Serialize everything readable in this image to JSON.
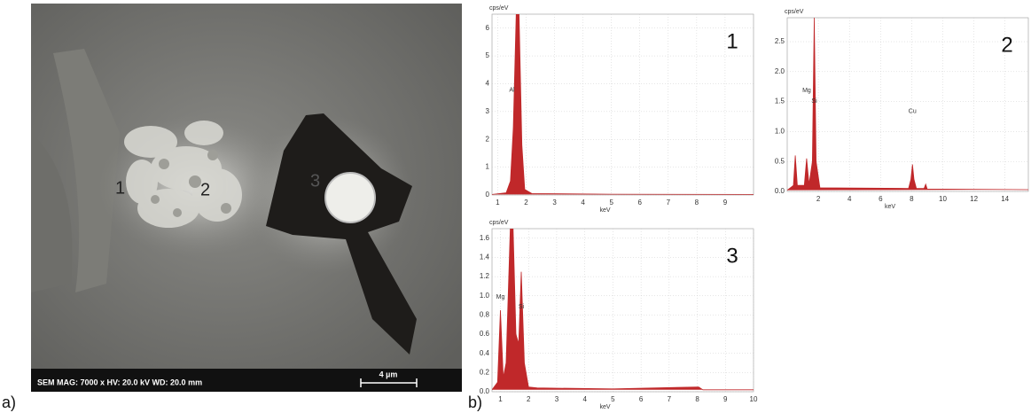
{
  "panel_labels": [
    "a)",
    "b)"
  ],
  "sem": {
    "region_labels": [
      "1",
      "2",
      "3"
    ],
    "info": "SEM  MAG: 7000 x  HV: 20.0 kV  WD: 20.0 mm",
    "scale": "4 µm"
  },
  "chart_data": [
    {
      "type": "area",
      "label": "1",
      "y_label": "cps/eV",
      "x_label": "keV",
      "color": "#c0282a",
      "grid": true,
      "xlim": [
        0.8,
        10
      ],
      "ylim": [
        0,
        6.5
      ],
      "xticks": [
        1,
        2,
        3,
        4,
        5,
        6,
        7,
        8,
        9
      ],
      "yticks": [
        0,
        1,
        2,
        3,
        4,
        5,
        6
      ],
      "x": [
        0.8,
        1.3,
        1.45,
        1.55,
        1.65,
        1.75,
        1.85,
        1.95,
        2.2,
        5,
        10
      ],
      "values": [
        0.02,
        0.08,
        0.5,
        2.4,
        6.5,
        6.5,
        1.8,
        0.2,
        0.05,
        0.03,
        0.02
      ],
      "annotations": [
        {
          "text": "Al",
          "x": 1.5
        }
      ]
    },
    {
      "type": "area",
      "label": "2",
      "y_label": "cps/eV",
      "x_label": "keV",
      "color": "#c0282a",
      "grid": true,
      "xlim": [
        0,
        15.5
      ],
      "ylim": [
        0,
        2.9
      ],
      "xticks": [
        2,
        4,
        6,
        8,
        10,
        12,
        14
      ],
      "yticks": [
        {
          "value": 0,
          "label": "0.0"
        },
        0.5,
        {
          "value": 1,
          "label": "1.0"
        },
        1.5,
        {
          "value": 2,
          "label": "2.0"
        },
        2.5
      ],
      "x": [
        0,
        0.4,
        0.52,
        0.65,
        1.1,
        1.25,
        1.4,
        1.62,
        1.74,
        1.86,
        2.1,
        7.8,
        7.95,
        8.05,
        8.15,
        8.3,
        8.8,
        8.9,
        9.0,
        15.5
      ],
      "values": [
        0.02,
        0.1,
        0.6,
        0.1,
        0.1,
        0.55,
        0.12,
        0.5,
        2.9,
        0.5,
        0.06,
        0.05,
        0.2,
        0.45,
        0.2,
        0.05,
        0.05,
        0.12,
        0.04,
        0.03
      ],
      "annotations": [
        {
          "text": "Mg",
          "x": 1.25
        },
        {
          "text": "Si",
          "x": 1.74
        },
        {
          "text": "Cu",
          "x": 8.05
        }
      ]
    },
    {
      "type": "area",
      "label": "3",
      "y_label": "cps/eV",
      "x_label": "keV",
      "color": "#c0282a",
      "grid": true,
      "xlim": [
        0.7,
        10
      ],
      "ylim": [
        0,
        1.7
      ],
      "xticks": [
        1,
        2,
        3,
        4,
        5,
        6,
        7,
        8,
        9,
        10
      ],
      "yticks": [
        {
          "value": 0,
          "label": "0.0"
        },
        0.2,
        0.4,
        0.6,
        0.8,
        {
          "value": 1,
          "label": "1.0"
        },
        1.2,
        1.4,
        1.6
      ],
      "x": [
        0.7,
        0.9,
        1.0,
        1.1,
        1.2,
        1.35,
        1.45,
        1.55,
        1.65,
        1.74,
        1.85,
        2.0,
        2.3,
        5,
        8.05,
        8.2,
        10
      ],
      "values": [
        0.02,
        0.1,
        0.85,
        0.15,
        0.3,
        1.7,
        1.7,
        0.6,
        0.5,
        1.25,
        0.3,
        0.05,
        0.04,
        0.03,
        0.05,
        0.02,
        0.02
      ],
      "annotations": [
        {
          "text": "Mg",
          "x": 1.0
        },
        {
          "text": "Si",
          "x": 1.74
        }
      ]
    }
  ]
}
